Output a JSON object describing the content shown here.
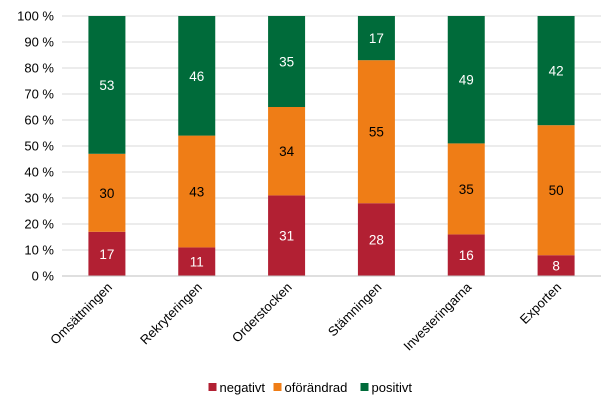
{
  "chart_data": {
    "type": "bar",
    "stacked": true,
    "title": "",
    "xlabel": "",
    "ylabel": "",
    "ylim": [
      0,
      100
    ],
    "yticks": [
      0,
      10,
      20,
      30,
      40,
      50,
      60,
      70,
      80,
      90,
      100
    ],
    "ytick_suffix": " %",
    "grid": true,
    "legend_position": "bottom",
    "categories": [
      "Omsättningen",
      "Rekryteringen",
      "Orderstocken",
      "Stämningen",
      "Investeringarna",
      "Exporten"
    ],
    "series": [
      {
        "name": "negativt",
        "color": "#b22033",
        "label_color": "#ffffff",
        "values": [
          17,
          11,
          31,
          28,
          16,
          8
        ]
      },
      {
        "name": "oförändrad",
        "color": "#ef7d16",
        "label_color": "#000000",
        "values": [
          30,
          43,
          34,
          55,
          35,
          50
        ]
      },
      {
        "name": "positivt",
        "color": "#006b3a",
        "label_color": "#ffffff",
        "values": [
          53,
          46,
          35,
          17,
          49,
          42
        ]
      }
    ]
  }
}
